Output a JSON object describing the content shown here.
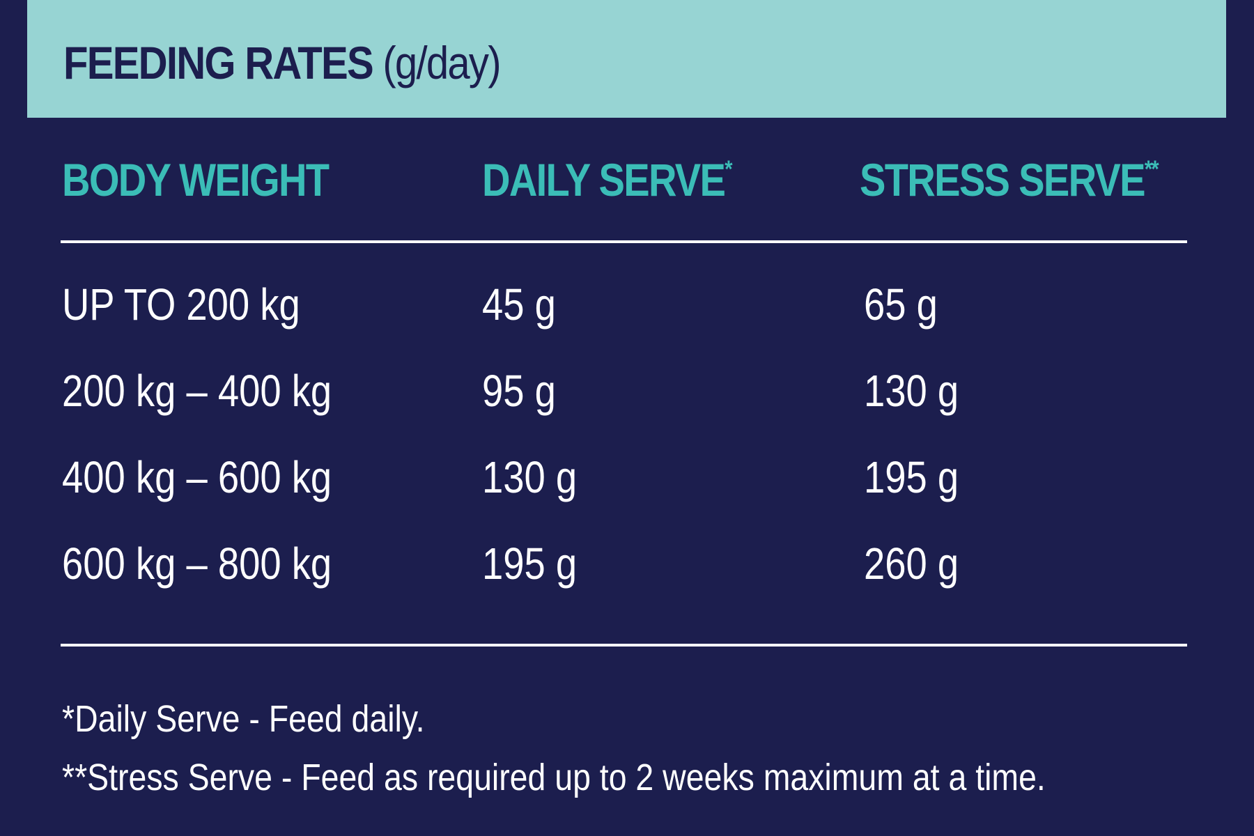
{
  "header": {
    "title": "FEEDING RATES",
    "unit": "(g/day)"
  },
  "columns": [
    {
      "label": "BODY WEIGHT",
      "mark": ""
    },
    {
      "label": "DAILY SERVE",
      "mark": "*"
    },
    {
      "label": "STRESS SERVE",
      "mark": "**"
    }
  ],
  "rows": [
    {
      "body_weight": "UP TO 200 kg",
      "daily_serve": "45 g",
      "stress_serve": "65 g"
    },
    {
      "body_weight": "200 kg – 400 kg",
      "daily_serve": "95 g",
      "stress_serve": "130 g"
    },
    {
      "body_weight": "400 kg – 600 kg",
      "daily_serve": "130 g",
      "stress_serve": "195 g"
    },
    {
      "body_weight": "600 kg – 800 kg",
      "daily_serve": "195 g",
      "stress_serve": "260 g"
    }
  ],
  "footnotes": [
    "*Daily Serve - Feed daily.",
    "**Stress Serve - Feed as required up to 2 weeks maximum at a time."
  ],
  "colors": {
    "background": "#1c1e4e",
    "header_band": "#97d4d3",
    "accent": "#3bbdb7",
    "text": "#ffffff"
  }
}
